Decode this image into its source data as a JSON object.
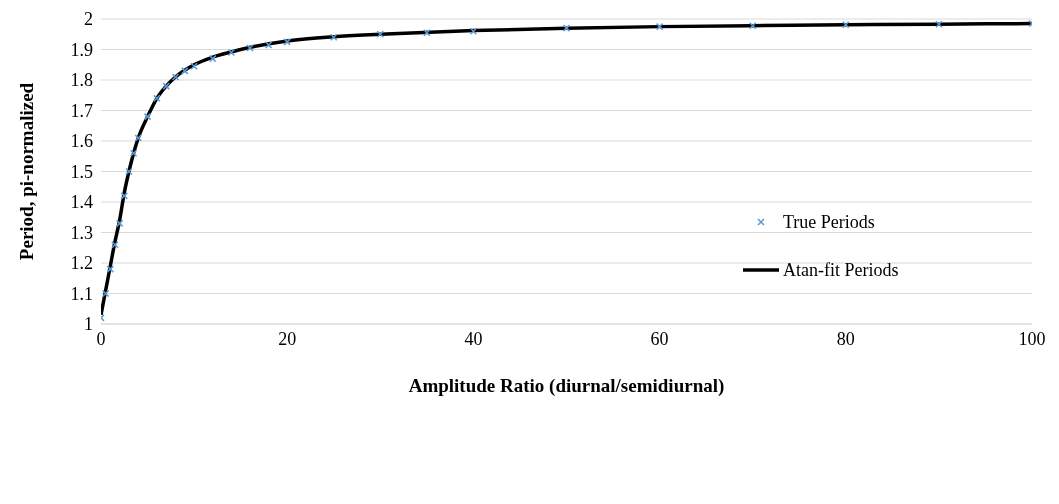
{
  "chart_data": {
    "type": "line",
    "xlabel": "Amplitude Ratio (diurnal/semidiurnal)",
    "ylabel": "Period, pi-normalized",
    "xlim": [
      0,
      100
    ],
    "xticks": [
      0,
      20,
      40,
      60,
      80,
      100
    ],
    "ylim": [
      1,
      2
    ],
    "yticks": [
      1,
      1.1,
      1.2,
      1.3,
      1.4,
      1.5,
      1.6,
      1.7,
      1.8,
      1.9,
      2
    ],
    "grid": "y",
    "legend": "right",
    "series": [
      {
        "name": "True Periods",
        "type": "scatter",
        "marker": "cross",
        "color": "#5b9bd5",
        "x": [
          0,
          0.5,
          1,
          1.5,
          2,
          2.5,
          3,
          3.5,
          4,
          5,
          6,
          7,
          8,
          9,
          10,
          12,
          14,
          16,
          18,
          20,
          25,
          30,
          35,
          40,
          50,
          60,
          70,
          80,
          90,
          100
        ],
        "values": [
          1.02,
          1.1,
          1.18,
          1.26,
          1.33,
          1.42,
          1.5,
          1.56,
          1.61,
          1.68,
          1.74,
          1.78,
          1.81,
          1.83,
          1.845,
          1.87,
          1.89,
          1.905,
          1.915,
          1.925,
          1.94,
          1.95,
          1.955,
          1.96,
          1.97,
          1.975,
          1.978,
          1.981,
          1.983,
          1.985
        ]
      },
      {
        "name": "Atan-fit Periods",
        "marker": "none",
        "color": "#000000",
        "x": [
          0,
          0.5,
          1,
          1.5,
          2,
          2.5,
          3,
          3.5,
          4,
          5,
          6,
          7,
          8,
          10,
          12,
          15,
          20,
          25,
          30,
          40,
          50,
          60,
          70,
          80,
          90,
          100
        ],
        "values": [
          1.03,
          1.11,
          1.19,
          1.27,
          1.34,
          1.43,
          1.5,
          1.56,
          1.61,
          1.68,
          1.74,
          1.78,
          1.81,
          1.85,
          1.875,
          1.9,
          1.928,
          1.942,
          1.95,
          1.962,
          1.97,
          1.975,
          1.978,
          1.981,
          1.983,
          1.985
        ]
      }
    ]
  }
}
